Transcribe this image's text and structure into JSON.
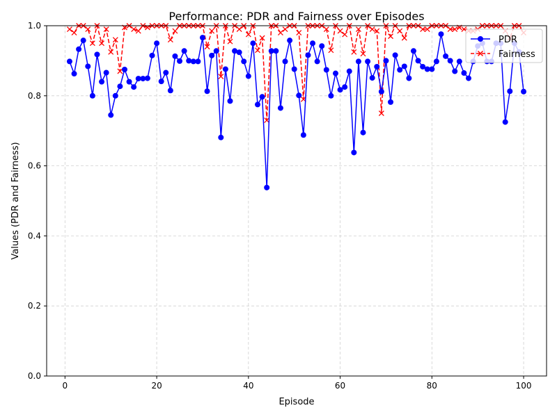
{
  "chart_data": {
    "type": "line",
    "title": "Performance: PDR and Fairness over Episodes",
    "xlabel": "Episode",
    "ylabel": "Values (PDR and Fairness)",
    "xlim": [
      -4,
      105
    ],
    "ylim": [
      0.0,
      1.0
    ],
    "xticks": [
      0,
      20,
      40,
      60,
      80,
      100
    ],
    "yticks": [
      0.0,
      0.2,
      0.4,
      0.6,
      0.8,
      1.0
    ],
    "xtick_labels": [
      "0",
      "20",
      "40",
      "60",
      "80",
      "100"
    ],
    "ytick_labels": [
      "0.0",
      "0.2",
      "0.4",
      "0.6",
      "0.8",
      "1.0"
    ],
    "grid": true,
    "legend_position": "top-right",
    "x": [
      1,
      2,
      3,
      4,
      5,
      6,
      7,
      8,
      9,
      10,
      11,
      12,
      13,
      14,
      15,
      16,
      17,
      18,
      19,
      20,
      21,
      22,
      23,
      24,
      25,
      26,
      27,
      28,
      29,
      30,
      31,
      32,
      33,
      34,
      35,
      36,
      37,
      38,
      39,
      40,
      41,
      42,
      43,
      44,
      45,
      46,
      47,
      48,
      49,
      50,
      51,
      52,
      53,
      54,
      55,
      56,
      57,
      58,
      59,
      60,
      61,
      62,
      63,
      64,
      65,
      66,
      67,
      68,
      69,
      70,
      71,
      72,
      73,
      74,
      75,
      76,
      77,
      78,
      79,
      80,
      81,
      82,
      83,
      84,
      85,
      86,
      87,
      88,
      89,
      90,
      91,
      92,
      93,
      94,
      95,
      96,
      97,
      98,
      99,
      100
    ],
    "series": [
      {
        "name": "PDR",
        "color": "#0000ff",
        "marker": "circle",
        "linestyle": "solid",
        "values": [
          0.898,
          0.863,
          0.933,
          0.958,
          0.884,
          0.8,
          0.918,
          0.84,
          0.866,
          0.745,
          0.8,
          0.827,
          0.875,
          0.84,
          0.825,
          0.849,
          0.849,
          0.85,
          0.915,
          0.95,
          0.841,
          0.866,
          0.815,
          0.913,
          0.899,
          0.928,
          0.9,
          0.898,
          0.898,
          0.966,
          0.813,
          0.915,
          0.928,
          0.681,
          0.876,
          0.785,
          0.928,
          0.924,
          0.898,
          0.856,
          0.95,
          0.775,
          0.797,
          0.538,
          0.928,
          0.928,
          0.765,
          0.898,
          0.958,
          0.876,
          0.801,
          0.688,
          0.916,
          0.95,
          0.898,
          0.942,
          0.874,
          0.8,
          0.864,
          0.817,
          0.825,
          0.87,
          0.638,
          0.898,
          0.695,
          0.898,
          0.851,
          0.883,
          0.812,
          0.9,
          0.782,
          0.916,
          0.874,
          0.884,
          0.85,
          0.928,
          0.9,
          0.883,
          0.876,
          0.876,
          0.898,
          0.976,
          0.913,
          0.9,
          0.87,
          0.898,
          0.865,
          0.85,
          0.898,
          0.942,
          0.95,
          0.898,
          0.898,
          0.95,
          0.95,
          0.725,
          0.813,
          0.95,
          0.925,
          0.812
        ]
      },
      {
        "name": "Fairness",
        "color": "#ff0000",
        "marker": "x",
        "linestyle": "dashed",
        "values": [
          0.99,
          0.98,
          1.0,
          1.0,
          0.99,
          0.95,
          1.0,
          0.95,
          0.99,
          0.925,
          0.96,
          0.87,
          0.995,
          1.0,
          0.99,
          0.985,
          1.0,
          0.995,
          1.0,
          1.0,
          1.0,
          1.0,
          0.96,
          0.985,
          1.0,
          1.0,
          1.0,
          1.0,
          1.0,
          1.0,
          0.94,
          0.985,
          1.0,
          0.855,
          1.0,
          0.955,
          1.0,
          0.99,
          1.0,
          0.975,
          1.0,
          0.93,
          0.965,
          0.73,
          1.0,
          1.0,
          0.98,
          0.99,
          1.0,
          1.0,
          0.98,
          0.79,
          1.0,
          1.0,
          1.0,
          1.0,
          0.99,
          0.93,
          1.0,
          0.985,
          0.975,
          1.0,
          0.925,
          0.99,
          0.92,
          1.0,
          0.99,
          0.985,
          0.75,
          1.0,
          0.97,
          1.0,
          0.985,
          0.965,
          1.0,
          1.0,
          1.0,
          0.99,
          0.99,
          1.0,
          1.0,
          1.0,
          1.0,
          0.99,
          0.99,
          0.995,
          0.99,
          0.985,
          0.985,
          0.99,
          1.0,
          1.0,
          1.0,
          1.0,
          1.0,
          0.985,
          0.965,
          1.0,
          1.0,
          0.98
        ]
      }
    ]
  }
}
